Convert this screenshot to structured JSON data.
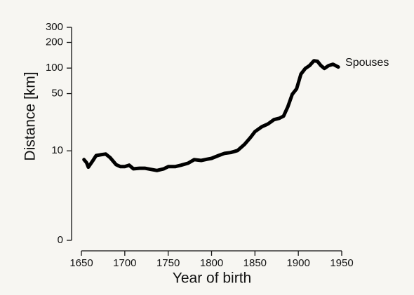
{
  "chart_data": {
    "type": "line",
    "x_label": "Year of birth",
    "y_label": "Distance [km]",
    "yscale": "log1p",
    "xlim": [
      1650,
      1950
    ],
    "xticks": [
      1650,
      1700,
      1750,
      1800,
      1850,
      1900,
      1950
    ],
    "ylim": [
      0,
      300
    ],
    "yticks": [
      0,
      10,
      50,
      100,
      200,
      300
    ],
    "grid": false,
    "x": [
      1653,
      1656,
      1658,
      1660,
      1663,
      1667,
      1672,
      1678,
      1683,
      1690,
      1695,
      1700,
      1705,
      1710,
      1717,
      1723,
      1730,
      1737,
      1745,
      1750,
      1758,
      1765,
      1773,
      1780,
      1788,
      1795,
      1800,
      1808,
      1815,
      1822,
      1830,
      1838,
      1845,
      1850,
      1858,
      1865,
      1872,
      1878,
      1883,
      1888,
      1893,
      1898,
      1903,
      1908,
      1913,
      1918,
      1922,
      1926,
      1930,
      1935,
      1940,
      1946
    ],
    "series": [
      {
        "name": "Spouses",
        "color": "#000000",
        "values": [
          7.7,
          7.0,
          6.1,
          6.6,
          7.4,
          8.7,
          8.9,
          9.1,
          8.2,
          6.6,
          6.2,
          6.2,
          6.5,
          5.8,
          5.9,
          5.9,
          5.7,
          5.5,
          5.8,
          6.2,
          6.2,
          6.5,
          6.9,
          7.7,
          7.5,
          7.8,
          8.0,
          8.7,
          9.3,
          9.5,
          10.1,
          12.1,
          14.8,
          17.4,
          20,
          21.6,
          24.4,
          25.3,
          26.9,
          35,
          49,
          57,
          85,
          99,
          107,
          122,
          120,
          107,
          99,
          107,
          111,
          103
        ]
      }
    ]
  }
}
